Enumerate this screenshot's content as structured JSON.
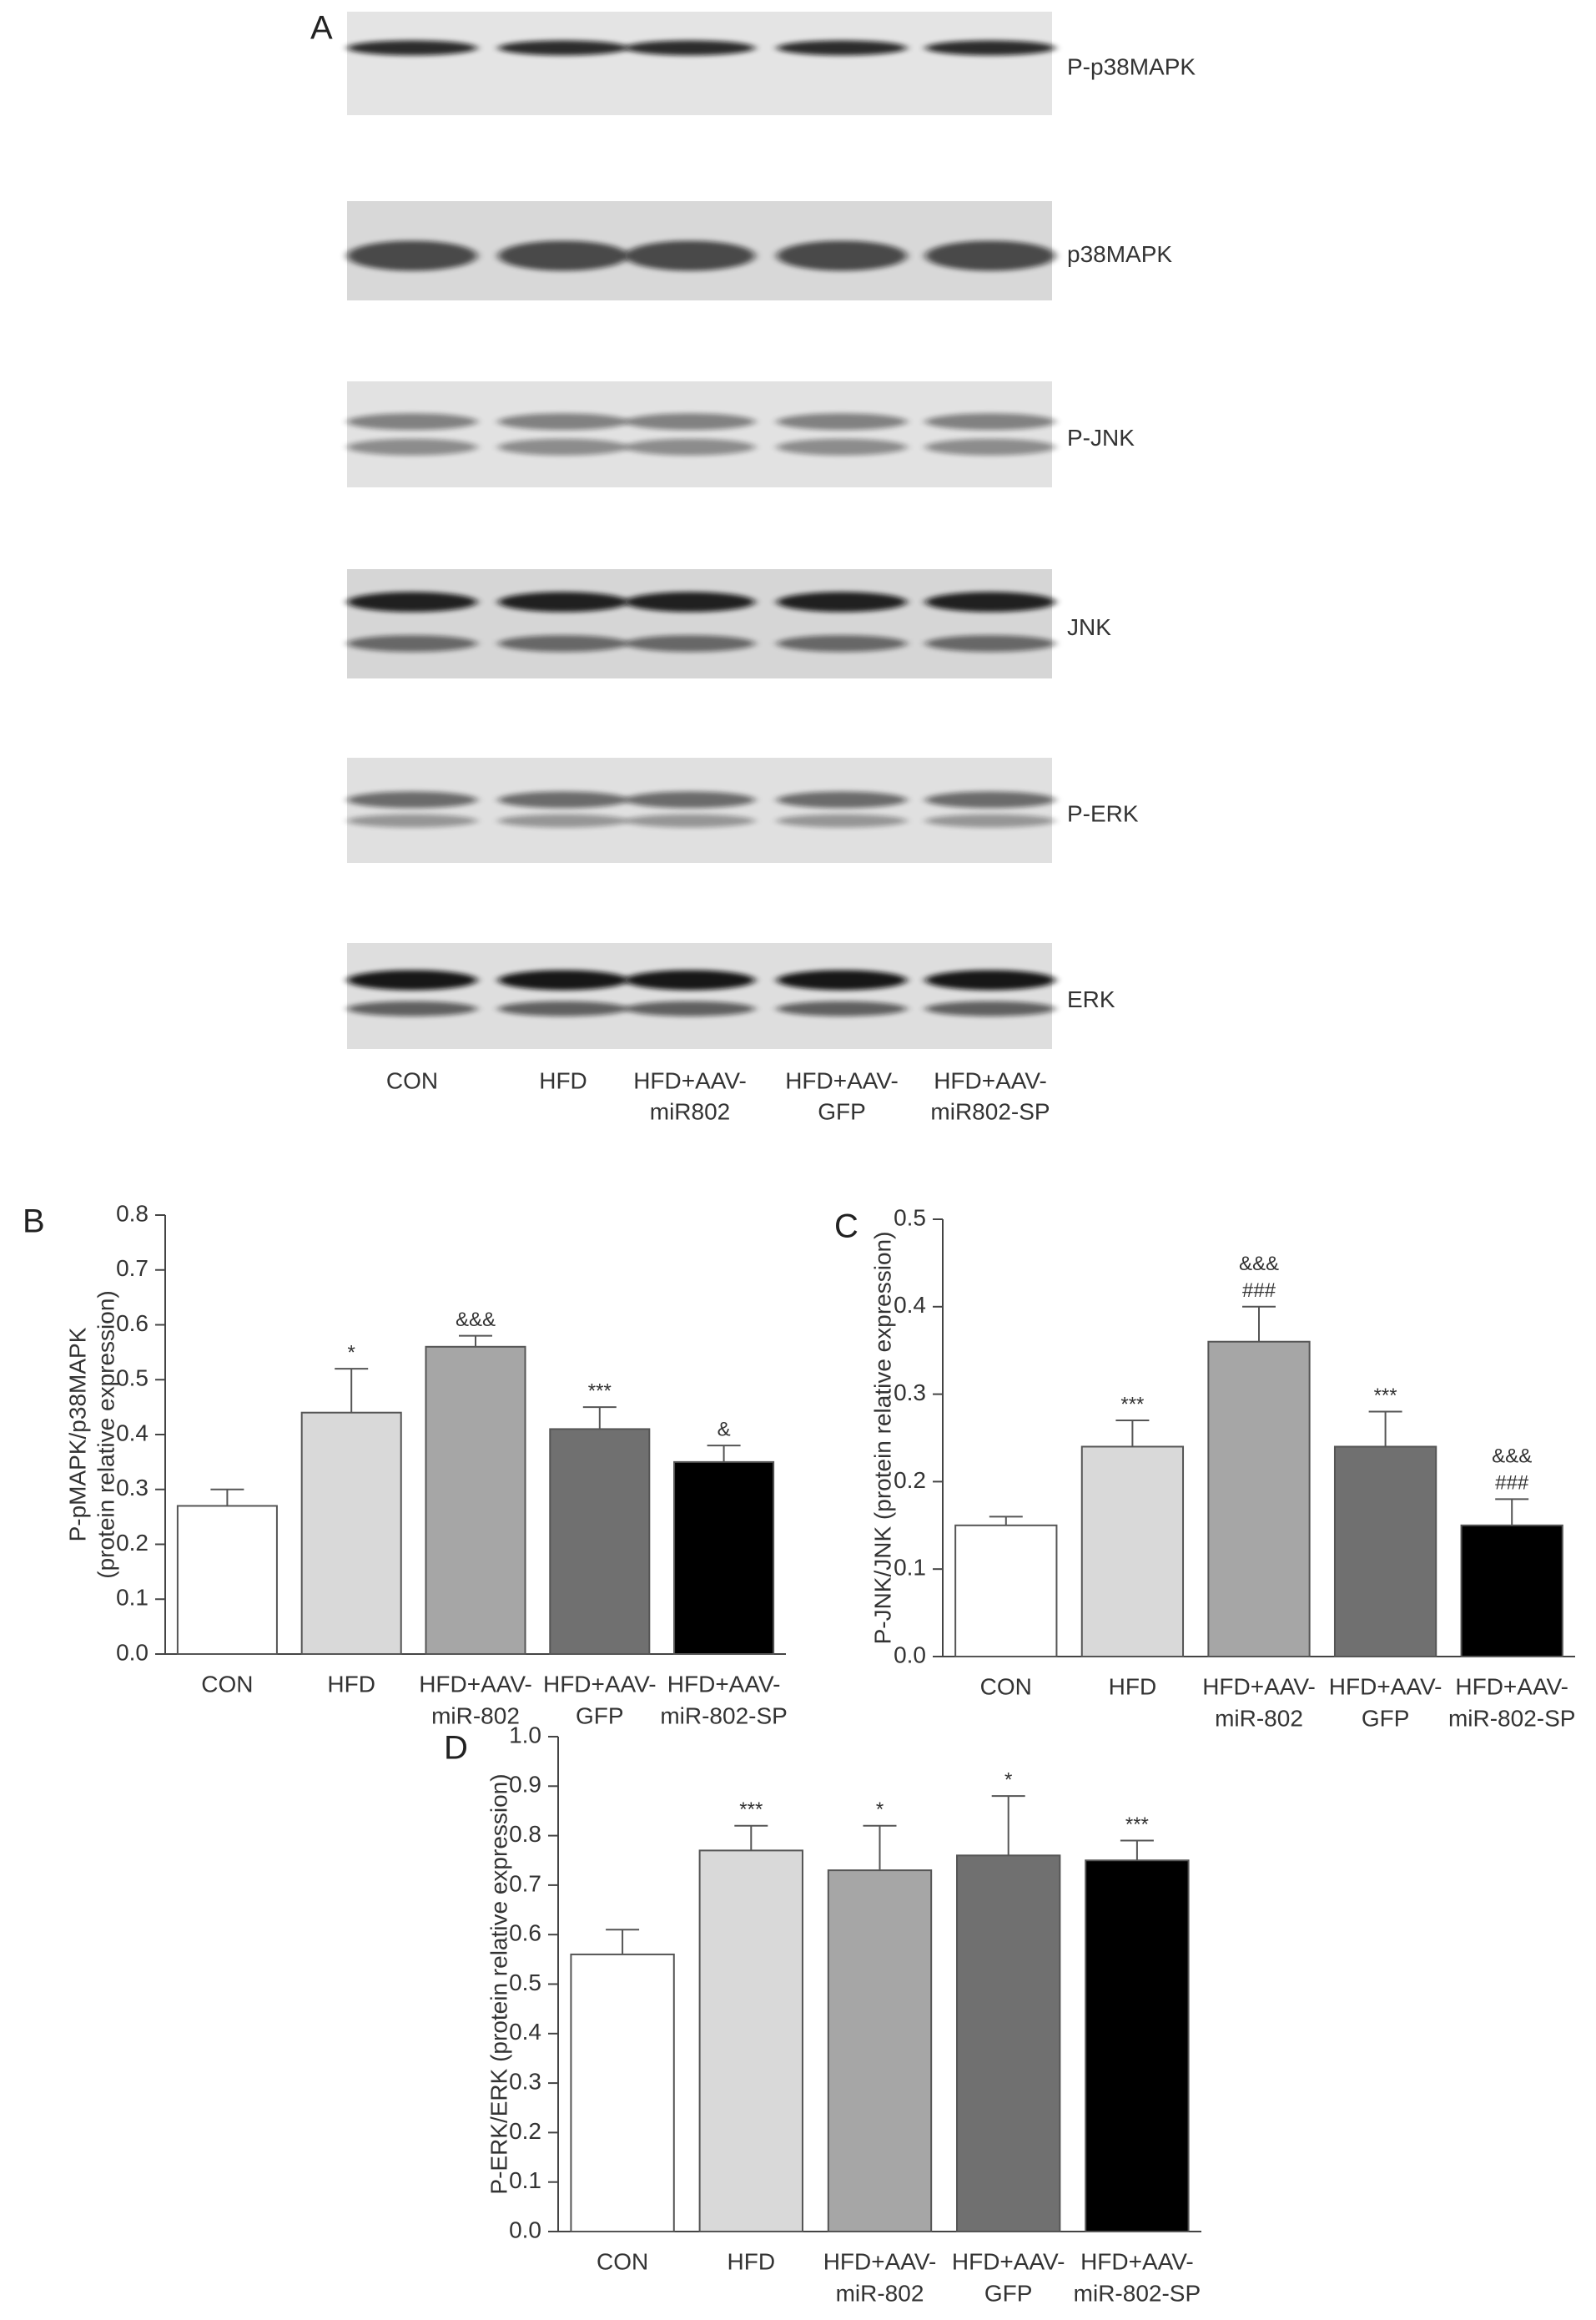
{
  "blot": {
    "panel_label": "A",
    "rows": [
      "P-p38MAPK",
      "p38MAPK",
      "P-JNK",
      "JNK",
      "P-ERK",
      "ERK"
    ],
    "lanes": [
      [
        "CON"
      ],
      [
        "HFD"
      ],
      [
        "HFD+AAV-",
        "miR802"
      ],
      [
        "HFD+AAV-",
        "GFP"
      ],
      [
        "HFD+AAV-",
        "miR802-SP"
      ]
    ]
  },
  "chart_data": [
    {
      "type": "bar",
      "panel_label": "B",
      "ylabel": [
        "P-pMAPK/p38MAPK",
        "(protein relative expression)"
      ],
      "categories": [
        [
          "CON"
        ],
        [
          "HFD"
        ],
        [
          "HFD+AAV-",
          "miR-802"
        ],
        [
          "HFD+AAV-",
          "GFP"
        ],
        [
          "HFD+AAV-",
          "miR-802-SP"
        ]
      ],
      "values": [
        0.27,
        0.44,
        0.56,
        0.41,
        0.35
      ],
      "errors": [
        0.03,
        0.08,
        0.02,
        0.04,
        0.03
      ],
      "annotations": [
        null,
        [
          "*"
        ],
        [
          "&&&"
        ],
        [
          "***"
        ],
        [
          "&"
        ]
      ],
      "colors": [
        "#ffffff",
        "#d9d9d9",
        "#a6a6a6",
        "#707070",
        "#000000"
      ],
      "ylim": [
        0,
        0.8
      ],
      "yticks": [
        {
          "value": 0,
          "label": "0.0"
        },
        0.1,
        0.2,
        0.3,
        0.4,
        0.5,
        0.6,
        0.7,
        0.8
      ]
    },
    {
      "type": "bar",
      "panel_label": "C",
      "ylabel": [
        "P-JNK/JNK (protein relative expression)"
      ],
      "categories": [
        [
          "CON"
        ],
        [
          "HFD"
        ],
        [
          "HFD+AAV-",
          "miR-802"
        ],
        [
          "HFD+AAV-",
          "GFP"
        ],
        [
          "HFD+AAV-",
          "miR-802-SP"
        ]
      ],
      "values": [
        0.15,
        0.24,
        0.36,
        0.24,
        0.15
      ],
      "errors": [
        0.01,
        0.03,
        0.04,
        0.04,
        0.03
      ],
      "annotations": [
        null,
        [
          "***"
        ],
        [
          "&&&",
          "###"
        ],
        [
          "***"
        ],
        [
          "&&&",
          "###"
        ]
      ],
      "colors": [
        "#ffffff",
        "#d9d9d9",
        "#a6a6a6",
        "#707070",
        "#000000"
      ],
      "ylim": [
        0,
        0.5
      ],
      "yticks": [
        {
          "value": 0,
          "label": "0.0"
        },
        0.1,
        0.2,
        0.3,
        0.4,
        0.5
      ]
    },
    {
      "type": "bar",
      "panel_label": "D",
      "ylabel": [
        "P-ERK/ERK (protein relative expression)"
      ],
      "categories": [
        [
          "CON"
        ],
        [
          "HFD"
        ],
        [
          "HFD+AAV-",
          "miR-802"
        ],
        [
          "HFD+AAV-",
          "GFP"
        ],
        [
          "HFD+AAV-",
          "miR-802-SP"
        ]
      ],
      "values": [
        0.56,
        0.77,
        0.73,
        0.76,
        0.75
      ],
      "errors": [
        0.05,
        0.05,
        0.09,
        0.12,
        0.04
      ],
      "annotations": [
        null,
        [
          "***"
        ],
        [
          "*"
        ],
        [
          "*"
        ],
        [
          "***"
        ]
      ],
      "colors": [
        "#ffffff",
        "#d9d9d9",
        "#a6a6a6",
        "#707070",
        "#000000"
      ],
      "ylim": [
        0,
        1.0
      ],
      "yticks": [
        {
          "value": 0,
          "label": "0.0"
        },
        0.1,
        0.2,
        0.3,
        0.4,
        0.5,
        0.6,
        0.7,
        0.8,
        0.9,
        {
          "value": 1,
          "label": "1.0"
        }
      ]
    }
  ]
}
